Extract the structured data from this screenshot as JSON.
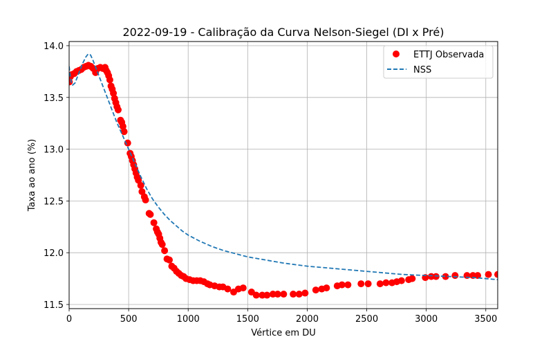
{
  "chart_data": {
    "type": "scatter",
    "title": "2022-09-19 - Calibração da Curva Nelson-Siegel (DI x Pré)",
    "xlabel": "Vértice em DU",
    "ylabel": "Taxa ao ano (%)",
    "xlim": [
      0,
      3600
    ],
    "ylim": [
      11.46,
      14.04
    ],
    "xticks": [
      0,
      500,
      1000,
      1500,
      2000,
      2500,
      3000,
      3500
    ],
    "yticks": [
      11.5,
      12.0,
      12.5,
      13.0,
      13.5,
      14.0
    ],
    "xtick_labels": [
      "0",
      "500",
      "1000",
      "1500",
      "2000",
      "2500",
      "3000",
      "3500"
    ],
    "ytick_labels": [
      "11.5",
      "12.0",
      "12.5",
      "13.0",
      "13.5",
      "14.0"
    ],
    "grid": true,
    "legend_position": "top-right",
    "series": [
      {
        "name": "ETTJ Observada",
        "kind": "scatter",
        "color": "#ff0000",
        "points": [
          [
            2,
            13.65
          ],
          [
            10,
            13.7
          ],
          [
            22,
            13.72
          ],
          [
            42,
            13.73
          ],
          [
            62,
            13.75
          ],
          [
            82,
            13.76
          ],
          [
            102,
            13.77
          ],
          [
            122,
            13.79
          ],
          [
            142,
            13.8
          ],
          [
            162,
            13.81
          ],
          [
            182,
            13.8
          ],
          [
            202,
            13.78
          ],
          [
            222,
            13.74
          ],
          [
            242,
            13.78
          ],
          [
            262,
            13.79
          ],
          [
            282,
            13.78
          ],
          [
            302,
            13.79
          ],
          [
            312,
            13.76
          ],
          [
            322,
            13.74
          ],
          [
            332,
            13.71
          ],
          [
            342,
            13.67
          ],
          [
            352,
            13.61
          ],
          [
            362,
            13.58
          ],
          [
            372,
            13.54
          ],
          [
            382,
            13.49
          ],
          [
            392,
            13.45
          ],
          [
            402,
            13.41
          ],
          [
            412,
            13.38
          ],
          [
            432,
            13.28
          ],
          [
            442,
            13.26
          ],
          [
            452,
            13.22
          ],
          [
            462,
            13.17
          ],
          [
            492,
            13.06
          ],
          [
            512,
            12.96
          ],
          [
            522,
            12.93
          ],
          [
            532,
            12.89
          ],
          [
            542,
            12.85
          ],
          [
            552,
            12.81
          ],
          [
            562,
            12.77
          ],
          [
            572,
            12.73
          ],
          [
            582,
            12.7
          ],
          [
            602,
            12.65
          ],
          [
            612,
            12.59
          ],
          [
            632,
            12.54
          ],
          [
            642,
            12.51
          ],
          [
            672,
            12.38
          ],
          [
            682,
            12.37
          ],
          [
            712,
            12.29
          ],
          [
            732,
            12.23
          ],
          [
            742,
            12.2
          ],
          [
            752,
            12.18
          ],
          [
            762,
            12.14
          ],
          [
            772,
            12.1
          ],
          [
            782,
            12.08
          ],
          [
            802,
            12.02
          ],
          [
            822,
            11.94
          ],
          [
            842,
            11.93
          ],
          [
            862,
            11.87
          ],
          [
            882,
            11.85
          ],
          [
            902,
            11.82
          ],
          [
            922,
            11.8
          ],
          [
            942,
            11.78
          ],
          [
            962,
            11.77
          ],
          [
            982,
            11.75
          ],
          [
            1012,
            11.74
          ],
          [
            1042,
            11.73
          ],
          [
            1072,
            11.73
          ],
          [
            1102,
            11.73
          ],
          [
            1132,
            11.72
          ],
          [
            1162,
            11.7
          ],
          [
            1182,
            11.69
          ],
          [
            1222,
            11.68
          ],
          [
            1262,
            11.67
          ],
          [
            1292,
            11.67
          ],
          [
            1332,
            11.65
          ],
          [
            1382,
            11.62
          ],
          [
            1422,
            11.65
          ],
          [
            1462,
            11.66
          ],
          [
            1532,
            11.62
          ],
          [
            1572,
            11.59
          ],
          [
            1622,
            11.59
          ],
          [
            1662,
            11.59
          ],
          [
            1712,
            11.6
          ],
          [
            1752,
            11.6
          ],
          [
            1802,
            11.6
          ],
          [
            1882,
            11.6
          ],
          [
            1932,
            11.6
          ],
          [
            1982,
            11.61
          ],
          [
            2072,
            11.64
          ],
          [
            2122,
            11.65
          ],
          [
            2162,
            11.66
          ],
          [
            2252,
            11.68
          ],
          [
            2292,
            11.69
          ],
          [
            2342,
            11.69
          ],
          [
            2452,
            11.7
          ],
          [
            2512,
            11.7
          ],
          [
            2612,
            11.7
          ],
          [
            2662,
            11.71
          ],
          [
            2712,
            11.71
          ],
          [
            2752,
            11.72
          ],
          [
            2792,
            11.73
          ],
          [
            2852,
            11.74
          ],
          [
            2882,
            11.75
          ],
          [
            2992,
            11.76
          ],
          [
            3042,
            11.77
          ],
          [
            3082,
            11.77
          ],
          [
            3162,
            11.77
          ],
          [
            3242,
            11.78
          ],
          [
            3342,
            11.78
          ],
          [
            3392,
            11.78
          ],
          [
            3432,
            11.78
          ],
          [
            3522,
            11.79
          ],
          [
            3600,
            11.79
          ]
        ]
      },
      {
        "name": "NSS",
        "kind": "line",
        "style": "dashed",
        "color": "#1f77b4",
        "points": [
          [
            0,
            13.8
          ],
          [
            10,
            13.7
          ],
          [
            20,
            13.64
          ],
          [
            30,
            13.62
          ],
          [
            50,
            13.64
          ],
          [
            80,
            13.73
          ],
          [
            110,
            13.82
          ],
          [
            140,
            13.89
          ],
          [
            160,
            13.92
          ],
          [
            180,
            13.91
          ],
          [
            200,
            13.86
          ],
          [
            220,
            13.8
          ],
          [
            250,
            13.71
          ],
          [
            300,
            13.56
          ],
          [
            350,
            13.41
          ],
          [
            400,
            13.26
          ],
          [
            450,
            13.13
          ],
          [
            500,
            13.0
          ],
          [
            550,
            12.87
          ],
          [
            600,
            12.74
          ],
          [
            650,
            12.62
          ],
          [
            700,
            12.52
          ],
          [
            750,
            12.44
          ],
          [
            800,
            12.37
          ],
          [
            850,
            12.31
          ],
          [
            900,
            12.26
          ],
          [
            950,
            12.21
          ],
          [
            1000,
            12.17
          ],
          [
            1100,
            12.11
          ],
          [
            1200,
            12.06
          ],
          [
            1300,
            12.02
          ],
          [
            1400,
            11.99
          ],
          [
            1500,
            11.96
          ],
          [
            1600,
            11.94
          ],
          [
            1800,
            11.9
          ],
          [
            2000,
            11.87
          ],
          [
            2200,
            11.85
          ],
          [
            2400,
            11.83
          ],
          [
            2600,
            11.81
          ],
          [
            2800,
            11.79
          ],
          [
            3000,
            11.78
          ],
          [
            3200,
            11.77
          ],
          [
            3400,
            11.76
          ],
          [
            3600,
            11.74
          ]
        ]
      }
    ]
  }
}
